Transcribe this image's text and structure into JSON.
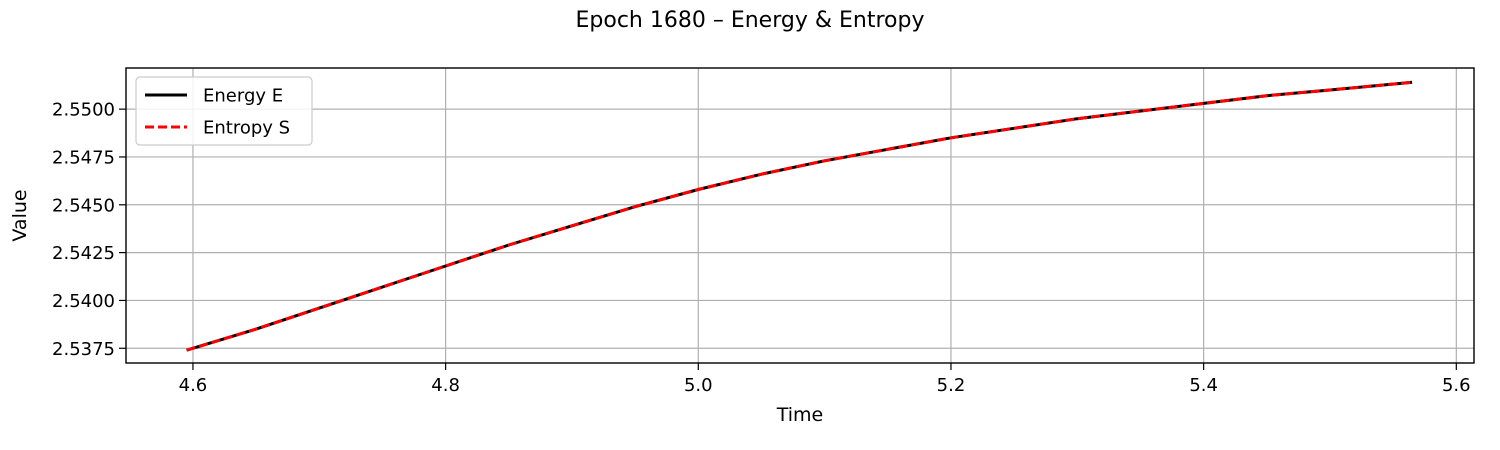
{
  "chart_data": {
    "type": "line",
    "title": "Epoch 1680 – Energy & Entropy",
    "xlabel": "Time",
    "ylabel": "Value",
    "xlim": [
      4.547,
      5.614
    ],
    "ylim": [
      2.53673,
      2.55215
    ],
    "xticks": [
      4.6,
      4.8,
      5.0,
      5.2,
      5.4,
      5.6
    ],
    "xtick_labels": [
      "4.6",
      "4.8",
      "5.0",
      "5.2",
      "5.4",
      "5.6"
    ],
    "yticks": [
      2.5375,
      2.54,
      2.5425,
      2.545,
      2.5475,
      2.55
    ],
    "ytick_labels": [
      "2.5375",
      "2.5400",
      "2.5425",
      "2.5450",
      "2.5475",
      "2.5500"
    ],
    "grid": true,
    "legend_position": "top-left",
    "series": [
      {
        "name": "Energy E",
        "color": "#000000",
        "style": "solid",
        "x": [
          4.595,
          4.65,
          4.7,
          4.75,
          4.8,
          4.85,
          4.9,
          4.95,
          5.0,
          5.05,
          5.1,
          5.15,
          5.2,
          5.25,
          5.3,
          5.35,
          5.4,
          5.45,
          5.5,
          5.565
        ],
        "y": [
          2.5374,
          2.5385,
          2.5396,
          2.5407,
          2.5418,
          2.5429,
          2.5439,
          2.5449,
          2.5458,
          2.5466,
          2.5473,
          2.5479,
          2.5485,
          2.549,
          2.5495,
          2.5499,
          2.5503,
          2.5507,
          2.551,
          2.5514
        ]
      },
      {
        "name": "Entropy S",
        "color": "#ff0000",
        "style": "dashed",
        "x": [
          4.595,
          4.65,
          4.7,
          4.75,
          4.8,
          4.85,
          4.9,
          4.95,
          5.0,
          5.05,
          5.1,
          5.15,
          5.2,
          5.25,
          5.3,
          5.35,
          5.4,
          5.45,
          5.5,
          5.565
        ],
        "y": [
          2.5374,
          2.5385,
          2.5396,
          2.5407,
          2.5418,
          2.5429,
          2.5439,
          2.5449,
          2.5458,
          2.5466,
          2.5473,
          2.5479,
          2.5485,
          2.549,
          2.5495,
          2.5499,
          2.5503,
          2.5507,
          2.551,
          2.5514
        ]
      }
    ]
  }
}
